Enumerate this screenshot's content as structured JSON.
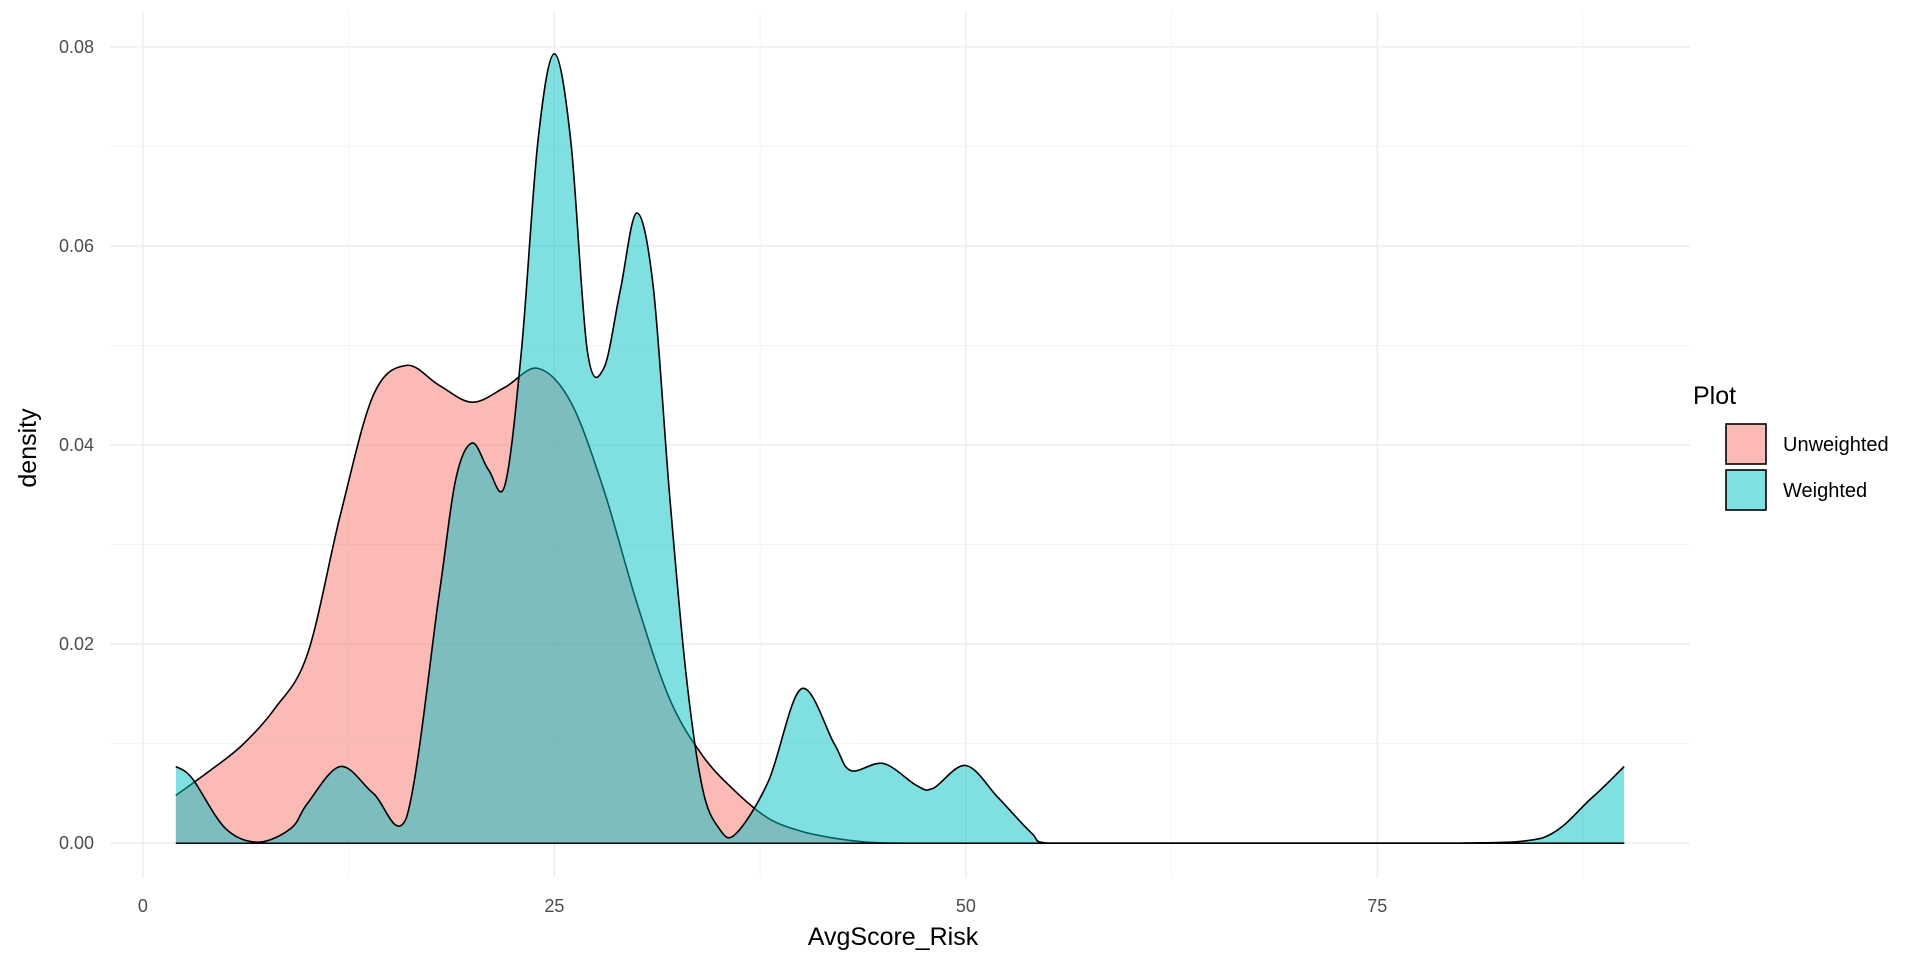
{
  "chart_data": {
    "type": "area",
    "title": "",
    "xlabel": "AvgScore_Risk",
    "ylabel": "density",
    "xlim": [
      -2,
      94
    ],
    "ylim": [
      -0.0035,
      0.0835
    ],
    "x_ticks": [
      0,
      25,
      50,
      75
    ],
    "x_tick_labels": [
      "0",
      "25",
      "50",
      "75"
    ],
    "y_ticks": [
      0,
      0.02,
      0.04,
      0.06,
      0.08
    ],
    "y_tick_labels": [
      "0.00",
      "0.02",
      "0.04",
      "0.06",
      "0.08"
    ],
    "grid": true,
    "legend": {
      "title": "Plot",
      "position": "right"
    },
    "series": [
      {
        "name": "Unweighted",
        "color": "#F8766D",
        "x": [
          2,
          4,
          6,
          8,
          10,
          12,
          14,
          16,
          18,
          20,
          22,
          24,
          26,
          28,
          30,
          32,
          34,
          36,
          38,
          40,
          42,
          44,
          46,
          48,
          50,
          52,
          54,
          56,
          60,
          70,
          80,
          90
        ],
        "y": [
          0.0048,
          0.0072,
          0.0098,
          0.0135,
          0.019,
          0.033,
          0.045,
          0.048,
          0.046,
          0.0443,
          0.0458,
          0.0477,
          0.0443,
          0.0355,
          0.0242,
          0.0145,
          0.0088,
          0.0052,
          0.0025,
          0.0012,
          0.0005,
          0.0001,
          0.0,
          0.0,
          0.0,
          0.0,
          0.0,
          0.0,
          0.0,
          0.0,
          0.0,
          0.0
        ]
      },
      {
        "name": "Weighted",
        "color": "#00BFC4",
        "x": [
          2,
          3,
          5,
          7,
          9,
          10,
          12,
          14,
          16,
          18,
          19,
          20,
          21,
          22,
          23,
          24,
          25,
          26,
          27,
          28,
          29,
          30,
          31,
          32,
          33,
          34,
          35,
          36,
          38,
          40,
          42,
          43,
          45,
          47,
          48,
          50,
          52,
          54,
          55,
          60,
          70,
          80,
          85,
          88,
          90
        ],
        "y": [
          0.0077,
          0.0065,
          0.0015,
          0.0001,
          0.0015,
          0.004,
          0.0077,
          0.005,
          0.0025,
          0.025,
          0.0365,
          0.0402,
          0.0375,
          0.036,
          0.0495,
          0.0705,
          0.0793,
          0.0705,
          0.0495,
          0.0477,
          0.0555,
          0.0633,
          0.056,
          0.035,
          0.017,
          0.0055,
          0.0015,
          0.0009,
          0.0062,
          0.0155,
          0.01,
          0.0073,
          0.008,
          0.0058,
          0.0055,
          0.0078,
          0.0045,
          0.001,
          0.0,
          0.0,
          0.0,
          0.0,
          0.0005,
          0.0045,
          0.0077
        ]
      }
    ]
  }
}
